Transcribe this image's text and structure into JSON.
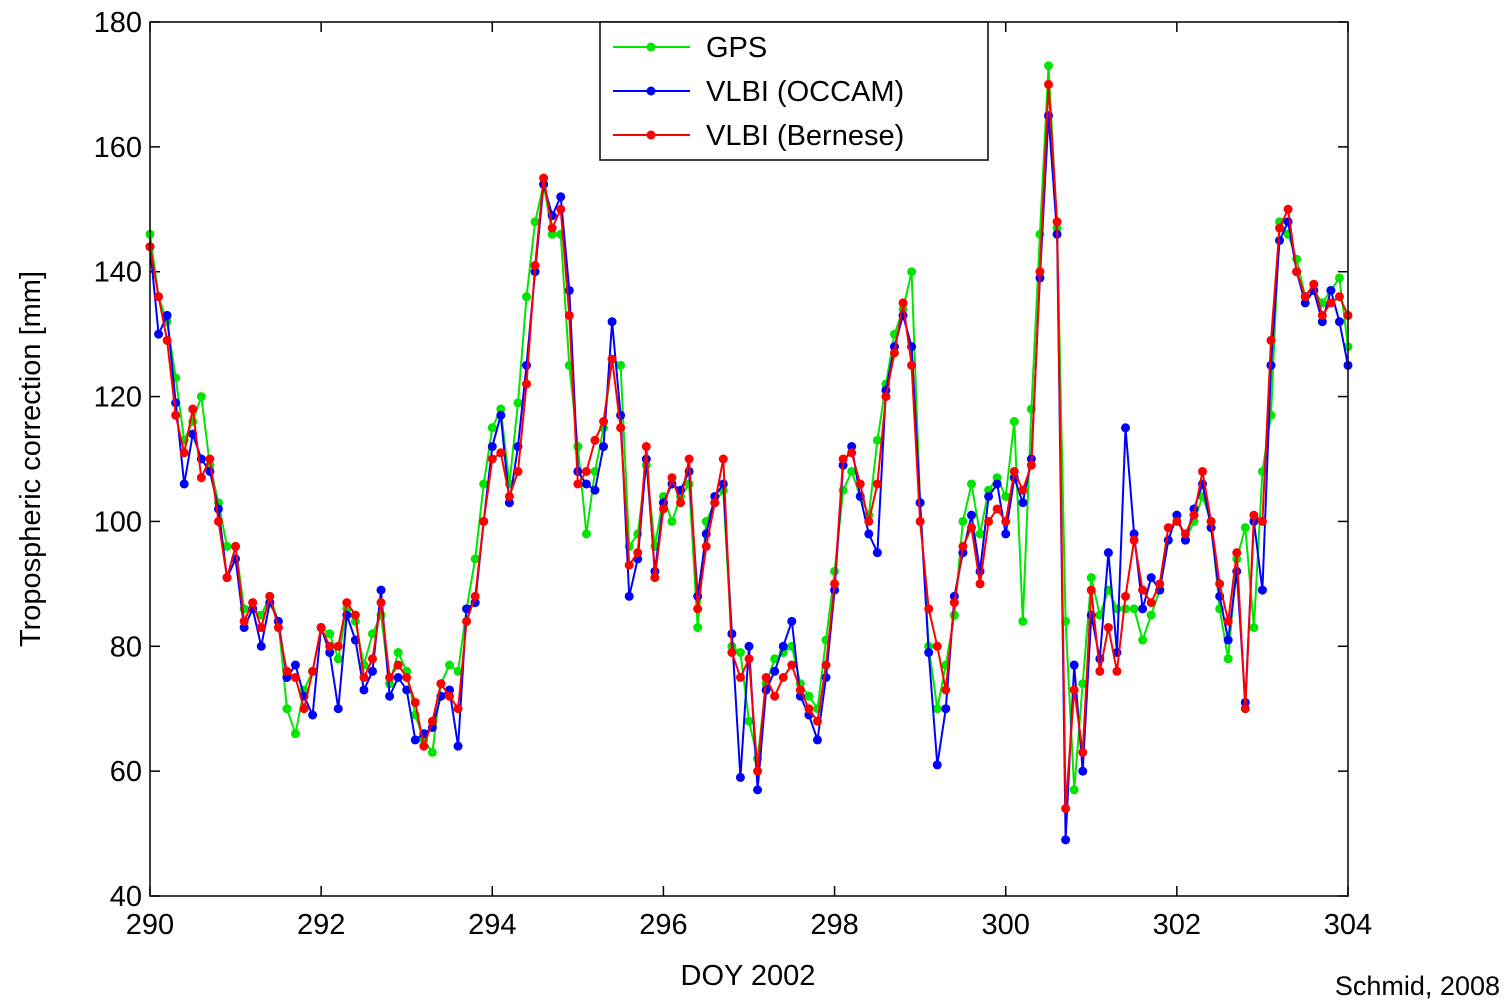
{
  "chart_data": {
    "type": "line",
    "xlabel": "DOY 2002",
    "ylabel": "Tropospheric correction [mm]",
    "annotation": "Schmid, 2008",
    "xlim": [
      290,
      304
    ],
    "xticks": [
      290,
      292,
      294,
      296,
      298,
      300,
      302,
      304
    ],
    "ylim": [
      40,
      180
    ],
    "yticks": [
      40,
      60,
      80,
      100,
      120,
      140,
      160,
      180
    ],
    "x_start": 290,
    "x_step": 0.1,
    "series": [
      {
        "name": "GPS",
        "color": "#00e600",
        "values": [
          146,
          136,
          132,
          123,
          113,
          116,
          120,
          109,
          103,
          96,
          96,
          86,
          86,
          85,
          88,
          84,
          70,
          66,
          73,
          76,
          83,
          82,
          78,
          86,
          84,
          77,
          82,
          85,
          74,
          79,
          76,
          69,
          65,
          63,
          74,
          77,
          76,
          86,
          94,
          106,
          115,
          118,
          106,
          119,
          136,
          148,
          154,
          146,
          146,
          125,
          112,
          98,
          108,
          115,
          126,
          125,
          96,
          98,
          109,
          96,
          104,
          100,
          104,
          106,
          83,
          100,
          103,
          105,
          80,
          79,
          68,
          62,
          74,
          78,
          79,
          80,
          74,
          72,
          70,
          81,
          92,
          105,
          108,
          104,
          101,
          113,
          122,
          130,
          134,
          140,
          103,
          80,
          70,
          77,
          85,
          100,
          106,
          98,
          105,
          107,
          104,
          116,
          84,
          118,
          146,
          173,
          147,
          84,
          57,
          74,
          91,
          85,
          89,
          86,
          86,
          86,
          81,
          85,
          89,
          97,
          101,
          97,
          100,
          104,
          100,
          86,
          78,
          94,
          99,
          83,
          108,
          117,
          148,
          146,
          142,
          136,
          137,
          135,
          137,
          139,
          128
        ]
      },
      {
        "name": "VLBI (OCCAM)",
        "color": "#0000ff",
        "values": [
          144,
          130,
          133,
          119,
          106,
          114,
          110,
          108,
          102,
          91,
          94,
          83,
          86,
          80,
          87,
          84,
          75,
          77,
          72,
          69,
          83,
          79,
          70,
          85,
          81,
          73,
          76,
          89,
          72,
          75,
          73,
          65,
          66,
          67,
          72,
          73,
          64,
          86,
          87,
          100,
          112,
          117,
          103,
          112,
          125,
          140,
          154,
          149,
          152,
          137,
          108,
          106,
          105,
          112,
          132,
          117,
          88,
          94,
          110,
          92,
          103,
          106,
          105,
          108,
          88,
          98,
          104,
          106,
          82,
          59,
          80,
          57,
          73,
          76,
          80,
          84,
          72,
          69,
          65,
          75,
          89,
          109,
          112,
          104,
          98,
          95,
          121,
          128,
          133,
          128,
          103,
          79,
          61,
          70,
          88,
          95,
          101,
          92,
          104,
          106,
          98,
          107,
          103,
          110,
          139,
          165,
          146,
          49,
          77,
          60,
          85,
          78,
          95,
          79,
          115,
          98,
          86,
          91,
          89,
          97,
          101,
          97,
          102,
          106,
          99,
          88,
          81,
          92,
          71,
          100,
          89,
          125,
          145,
          148,
          140,
          135,
          137,
          132,
          137,
          132,
          125
        ]
      },
      {
        "name": "VLBI (Bernese)",
        "color": "#ff0000",
        "values": [
          144,
          136,
          129,
          117,
          111,
          118,
          107,
          110,
          100,
          91,
          96,
          84,
          87,
          83,
          88,
          83,
          76,
          75,
          70,
          76,
          83,
          80,
          80,
          87,
          85,
          75,
          78,
          87,
          75,
          77,
          75,
          71,
          64,
          68,
          74,
          72,
          70,
          84,
          88,
          100,
          110,
          111,
          104,
          108,
          122,
          141,
          155,
          147,
          150,
          133,
          106,
          108,
          113,
          116,
          126,
          115,
          93,
          95,
          112,
          91,
          102,
          107,
          103,
          110,
          86,
          96,
          103,
          110,
          79,
          75,
          78,
          60,
          75,
          72,
          75,
          77,
          73,
          70,
          68,
          77,
          90,
          110,
          111,
          106,
          100,
          106,
          120,
          127,
          135,
          125,
          100,
          86,
          80,
          73,
          87,
          96,
          99,
          90,
          100,
          102,
          100,
          108,
          105,
          109,
          140,
          170,
          148,
          54,
          73,
          63,
          89,
          76,
          83,
          76,
          88,
          97,
          89,
          87,
          90,
          99,
          100,
          98,
          101,
          108,
          100,
          90,
          84,
          95,
          70,
          101,
          100,
          129,
          147,
          150,
          140,
          136,
          138,
          133,
          135,
          136,
          133
        ]
      }
    ]
  }
}
